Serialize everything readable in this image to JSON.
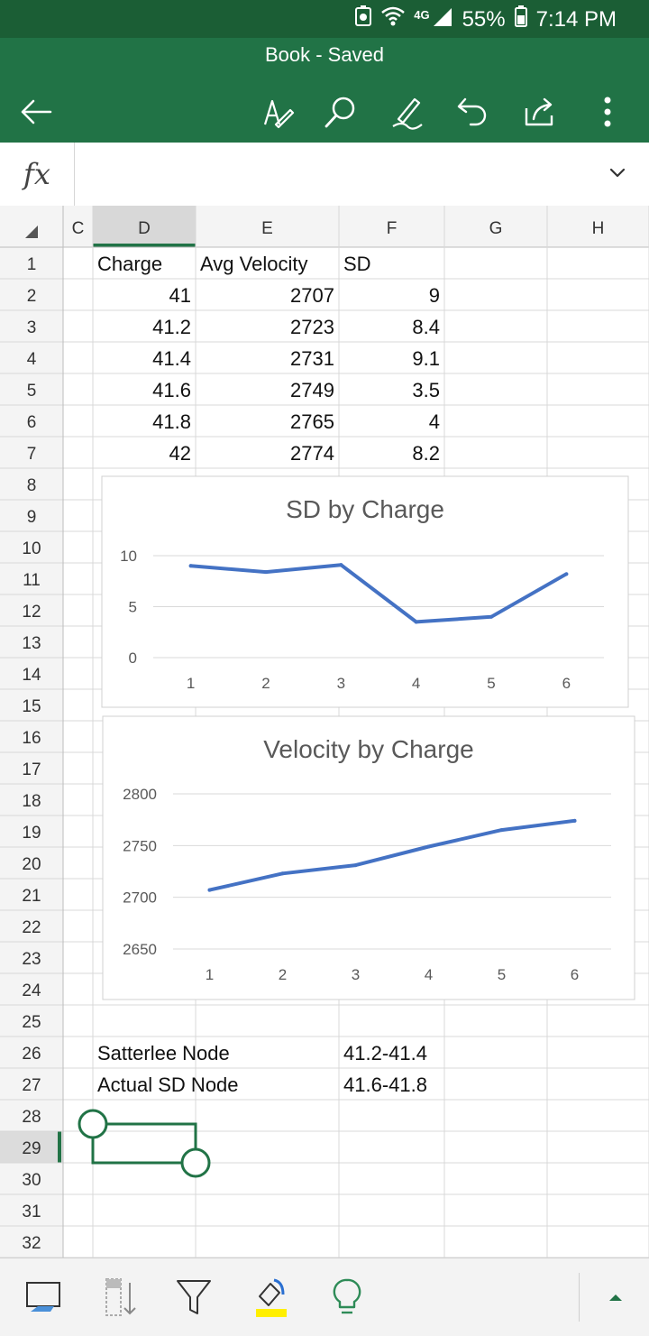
{
  "status": {
    "network": "4G",
    "battery": "55%",
    "time": "7:14 PM"
  },
  "header": {
    "title": "Book - Saved"
  },
  "formula": {
    "label": "fx",
    "value": ""
  },
  "columns": [
    "C",
    "D",
    "E",
    "F",
    "G",
    "H"
  ],
  "rows": [
    "1",
    "2",
    "3",
    "4",
    "5",
    "6",
    "7",
    "8",
    "9",
    "10",
    "11",
    "12",
    "13",
    "14",
    "15",
    "16",
    "17",
    "18",
    "19",
    "20",
    "21",
    "22",
    "23",
    "24",
    "25",
    "26",
    "27",
    "28",
    "29",
    "30",
    "31",
    "32"
  ],
  "table": {
    "headers": [
      "Charge",
      "Avg Velocity",
      "SD"
    ],
    "rows": [
      [
        "41",
        "2707",
        "9"
      ],
      [
        "41.2",
        "2723",
        "8.4"
      ],
      [
        "41.4",
        "2731",
        "9.1"
      ],
      [
        "41.6",
        "2749",
        "3.5"
      ],
      [
        "41.8",
        "2765",
        "4"
      ],
      [
        "42",
        "2774",
        "8.2"
      ]
    ]
  },
  "notes": [
    {
      "label": "Satterlee Node",
      "value": "41.2-41.4"
    },
    {
      "label": "Actual SD Node",
      "value": "41.6-41.8"
    }
  ],
  "chart_data": [
    {
      "type": "line",
      "title": "SD by Charge",
      "categories": [
        "1",
        "2",
        "3",
        "4",
        "5",
        "6"
      ],
      "series": [
        {
          "values": [
            9,
            8.4,
            9.1,
            3.5,
            4,
            8.2
          ]
        }
      ],
      "yticks": [
        "0",
        "5",
        "10"
      ],
      "ylim": [
        0,
        10
      ],
      "grid": true,
      "color": "#4472c4"
    },
    {
      "type": "line",
      "title": "Velocity by Charge",
      "categories": [
        "1",
        "2",
        "3",
        "4",
        "5",
        "6"
      ],
      "series": [
        {
          "values": [
            2707,
            2723,
            2731,
            2749,
            2765,
            2774
          ]
        }
      ],
      "yticks": [
        "2650",
        "2700",
        "2750",
        "2800"
      ],
      "ylim": [
        2650,
        2800
      ],
      "grid": true,
      "color": "#4472c4"
    }
  ],
  "colors": {
    "accent": "#217346",
    "status_bar": "#1b5e35",
    "series": "#4472c4",
    "fill_highlight": "#ffef00"
  },
  "icons": {
    "back": "back-arrow-icon",
    "appbar": [
      "draw-pen-icon",
      "search-icon",
      "ink-icon",
      "undo-icon",
      "share-icon",
      "more-icon"
    ],
    "toolbar": [
      "format-cells-icon",
      "sort-icon",
      "filter-icon",
      "fill-color-icon",
      "tell-me-icon",
      "expand-icon"
    ]
  }
}
